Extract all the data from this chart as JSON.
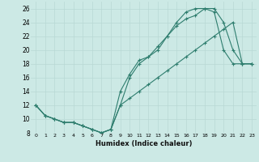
{
  "title": "",
  "xlabel": "Humidex (Indice chaleur)",
  "background_color": "#cce9e5",
  "line_color": "#2e7d6e",
  "grid_color": "#b8d8d4",
  "xlim": [
    -0.5,
    23.5
  ],
  "ylim": [
    8,
    27
  ],
  "xtick_labels": [
    "0",
    "1",
    "2",
    "3",
    "4",
    "5",
    "6",
    "7",
    "8",
    "9",
    "10",
    "11",
    "12",
    "13",
    "14",
    "15",
    "16",
    "17",
    "18",
    "19",
    "20",
    "21",
    "22",
    "23"
  ],
  "xtick_vals": [
    0,
    1,
    2,
    3,
    4,
    5,
    6,
    7,
    8,
    9,
    10,
    11,
    12,
    13,
    14,
    15,
    16,
    17,
    18,
    19,
    20,
    21,
    22,
    23
  ],
  "ytick_vals": [
    8,
    10,
    12,
    14,
    16,
    18,
    20,
    22,
    24,
    26
  ],
  "series1_x": [
    0,
    1,
    2,
    3,
    4,
    5,
    6,
    7,
    8,
    9,
    10,
    11,
    12,
    13,
    14,
    15,
    16,
    17,
    18,
    19,
    20,
    21,
    22,
    23
  ],
  "series1_y": [
    12,
    10.5,
    10,
    9.5,
    9.5,
    9,
    8.5,
    8,
    8.5,
    14,
    16.5,
    18.5,
    19,
    20.5,
    22,
    23.5,
    24.5,
    25,
    26,
    26,
    24,
    20,
    18,
    18
  ],
  "series2_x": [
    0,
    1,
    2,
    3,
    4,
    5,
    6,
    7,
    8,
    9,
    10,
    11,
    12,
    13,
    14,
    15,
    16,
    17,
    18,
    19,
    20,
    21,
    22,
    23
  ],
  "series2_y": [
    12,
    10.5,
    10,
    9.5,
    9.5,
    9,
    8.5,
    8,
    8.5,
    12,
    16,
    18,
    19,
    20,
    22,
    24,
    25.5,
    26,
    26,
    25.5,
    20,
    18,
    18,
    18
  ],
  "series3_x": [
    0,
    1,
    2,
    3,
    4,
    5,
    6,
    7,
    8,
    9,
    10,
    11,
    12,
    13,
    14,
    15,
    16,
    17,
    18,
    19,
    20,
    21,
    22,
    23
  ],
  "series3_y": [
    12,
    10.5,
    10,
    9.5,
    9.5,
    9,
    8.5,
    8,
    8.5,
    12,
    13,
    14,
    15,
    16,
    17,
    18,
    19,
    20,
    21,
    22,
    23,
    24,
    18,
    18
  ]
}
